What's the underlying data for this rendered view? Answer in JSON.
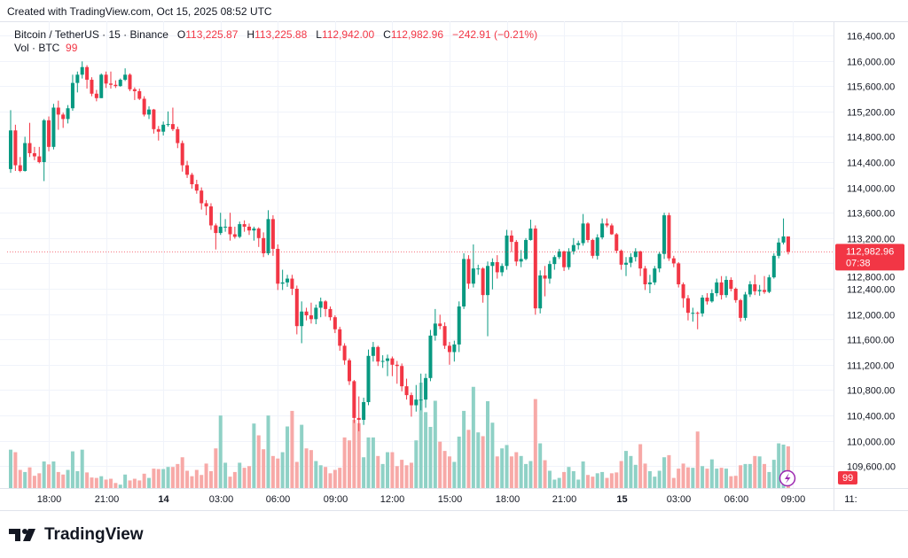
{
  "header": {
    "created": "Created with TradingView.com, Oct 15, 2025 08:52 UTC"
  },
  "legend": {
    "symbol": "Bitcoin / TetherUS · 15 · Binance",
    "o_label": "O",
    "open": "113,225.87",
    "h_label": "H",
    "high": "113,225.88",
    "l_label": "L",
    "low": "112,942.00",
    "c_label": "C",
    "close": "112,982.96",
    "change": "−242.91 (−0.21%)",
    "vol_label": "Vol · BTC",
    "vol_value": "99"
  },
  "price_label": {
    "price": "112,982.96",
    "countdown": "07:38"
  },
  "volume_label": "99",
  "logo": {
    "text": "TradingView"
  },
  "colors": {
    "up": "#089981",
    "down": "#f23645",
    "vol_up": "#8fd1c6",
    "vol_down": "#f7a9a7",
    "grid": "#f0f3fa"
  },
  "icons": {
    "lightning": "lightning-icon",
    "logo": "tradingview-logo-icon"
  },
  "chart_data": {
    "type": "candlestick",
    "symbol": "BTCUSDT",
    "interval": "15",
    "ylim": [
      109400,
      116700
    ],
    "y_ticks": [
      116400,
      116000,
      115600,
      115200,
      114800,
      114400,
      114000,
      113600,
      113200,
      112800,
      112400,
      112000,
      111600,
      111200,
      110800,
      110400,
      110000,
      109600
    ],
    "y_tick_labels": [
      "116,400.00",
      "116,000.00",
      "115,600.00",
      "115,200.00",
      "114,800.00",
      "114,400.00",
      "114,000.00",
      "113,600.00",
      "113,200.00",
      "112,800.00",
      "112,400.00",
      "112,000.00",
      "111,600.00",
      "111,200.00",
      "110,800.00",
      "110,400.00",
      "110,000.00",
      "109,600.00"
    ],
    "x_tick_labels": [
      "18:00",
      "21:00",
      "14",
      "03:00",
      "06:00",
      "09:00",
      "12:00",
      "15:00",
      "18:00",
      "21:00",
      "15",
      "03:00",
      "06:00",
      "09:00",
      "11:"
    ],
    "first_candle_time": "Oct 13 16:00",
    "last_price": 112982.96,
    "grid": true,
    "candle_fields": [
      "open",
      "high",
      "low",
      "close",
      "volume"
    ],
    "candles": [
      [
        114290,
        115220,
        114230,
        114900,
        91
      ],
      [
        114900,
        114990,
        114260,
        114350,
        85
      ],
      [
        114350,
        114480,
        114240,
        114260,
        43
      ],
      [
        114260,
        114800,
        114250,
        114700,
        38
      ],
      [
        114700,
        115020,
        114480,
        114540,
        49
      ],
      [
        114540,
        114640,
        114430,
        114490,
        29
      ],
      [
        114490,
        114640,
        114380,
        114400,
        35
      ],
      [
        114400,
        115080,
        114100,
        115060,
        63
      ],
      [
        115060,
        115120,
        114570,
        114640,
        56
      ],
      [
        114640,
        115320,
        114600,
        115260,
        63
      ],
      [
        115260,
        115370,
        114910,
        115150,
        38
      ],
      [
        115150,
        115180,
        114940,
        115080,
        32
      ],
      [
        115080,
        115300,
        115010,
        115250,
        43
      ],
      [
        115250,
        115780,
        115210,
        115650,
        87
      ],
      [
        115650,
        115830,
        115500,
        115780,
        40
      ],
      [
        115780,
        115990,
        115720,
        115900,
        91
      ],
      [
        115900,
        115930,
        115560,
        115700,
        37
      ],
      [
        115700,
        115740,
        115440,
        115480,
        25
      ],
      [
        115480,
        115540,
        115360,
        115410,
        24
      ],
      [
        115410,
        115800,
        115410,
        115780,
        28
      ],
      [
        115780,
        115830,
        115570,
        115640,
        20
      ],
      [
        115640,
        115830,
        115560,
        115620,
        22
      ],
      [
        115620,
        115690,
        115570,
        115600,
        12
      ],
      [
        115600,
        115720,
        115590,
        115700,
        8
      ],
      [
        115700,
        115880,
        115680,
        115780,
        32
      ],
      [
        115780,
        115800,
        115520,
        115550,
        18
      ],
      [
        115550,
        115580,
        115380,
        115520,
        22
      ],
      [
        115520,
        115560,
        115380,
        115400,
        18
      ],
      [
        115400,
        115440,
        115120,
        115150,
        34
      ],
      [
        115150,
        115280,
        115080,
        115230,
        24
      ],
      [
        115230,
        115240,
        114850,
        114920,
        46
      ],
      [
        114920,
        114970,
        114740,
        114880,
        45
      ],
      [
        114880,
        115040,
        114820,
        114990,
        45
      ],
      [
        114990,
        115200,
        114960,
        115000,
        50
      ],
      [
        115000,
        115260,
        114890,
        114920,
        50
      ],
      [
        114920,
        114960,
        114620,
        114700,
        57
      ],
      [
        114700,
        114740,
        114250,
        114350,
        73
      ],
      [
        114350,
        114420,
        114150,
        114200,
        41
      ],
      [
        114200,
        114230,
        113980,
        114050,
        28
      ],
      [
        114050,
        114120,
        113900,
        113950,
        43
      ],
      [
        113950,
        114000,
        113650,
        113750,
        31
      ],
      [
        113750,
        113800,
        113560,
        113700,
        58
      ],
      [
        113700,
        113750,
        113330,
        113400,
        40
      ],
      [
        113400,
        113430,
        113020,
        113280,
        94
      ],
      [
        113280,
        113600,
        113250,
        113380,
        172
      ],
      [
        113380,
        113500,
        113300,
        113380,
        60
      ],
      [
        113380,
        113600,
        113160,
        113260,
        27
      ],
      [
        113260,
        113380,
        113190,
        113220,
        38
      ],
      [
        113220,
        113460,
        113200,
        113420,
        60
      ],
      [
        113420,
        113480,
        113300,
        113380,
        48
      ],
      [
        113380,
        113430,
        113250,
        113320,
        52
      ],
      [
        113320,
        113380,
        113160,
        113350,
        153
      ],
      [
        113350,
        113370,
        113060,
        113200,
        125
      ],
      [
        113200,
        113290,
        112900,
        112960,
        92
      ],
      [
        112960,
        113640,
        112930,
        113500,
        172
      ],
      [
        113500,
        113560,
        112920,
        113030,
        76
      ],
      [
        113030,
        113100,
        112380,
        112480,
        70
      ],
      [
        112480,
        112700,
        112380,
        112500,
        85
      ],
      [
        112500,
        112620,
        112430,
        112560,
        146
      ],
      [
        112560,
        112620,
        112300,
        112400,
        183
      ],
      [
        112400,
        112450,
        111680,
        111810,
        62
      ],
      [
        111810,
        112200,
        111540,
        112040,
        150
      ],
      [
        112040,
        112100,
        111900,
        111980,
        94
      ],
      [
        111980,
        112180,
        111850,
        111920,
        90
      ],
      [
        111920,
        112150,
        111840,
        112100,
        64
      ],
      [
        112100,
        112260,
        111950,
        112200,
        54
      ],
      [
        112200,
        112220,
        111960,
        112080,
        50
      ],
      [
        112080,
        112120,
        111900,
        111950,
        35
      ],
      [
        111950,
        111980,
        111700,
        111760,
        43
      ],
      [
        111760,
        111800,
        111420,
        111500,
        48
      ],
      [
        111500,
        111540,
        111200,
        111270,
        120
      ],
      [
        111270,
        111300,
        110880,
        110940,
        113
      ],
      [
        110940,
        110960,
        110280,
        110360,
        162
      ],
      [
        110360,
        110700,
        110150,
        110330,
        154
      ],
      [
        110330,
        110680,
        110250,
        110610,
        73
      ],
      [
        110610,
        111440,
        110560,
        111340,
        120
      ],
      [
        111340,
        111560,
        111250,
        111480,
        120
      ],
      [
        111480,
        111500,
        111180,
        111250,
        76
      ],
      [
        111250,
        111350,
        111150,
        111260,
        57
      ],
      [
        111260,
        111360,
        111020,
        111300,
        85
      ],
      [
        111300,
        111330,
        111020,
        111200,
        85
      ],
      [
        111200,
        111260,
        110900,
        111180,
        52
      ],
      [
        111180,
        111220,
        110780,
        110860,
        67
      ],
      [
        110860,
        110980,
        110650,
        110720,
        54
      ],
      [
        110720,
        110760,
        110380,
        110560,
        60
      ],
      [
        110560,
        110880,
        110460,
        110650,
        113
      ],
      [
        110650,
        111060,
        110480,
        110650,
        250
      ],
      [
        110650,
        111060,
        110520,
        110990,
        180
      ],
      [
        110990,
        111750,
        110940,
        111660,
        145
      ],
      [
        111660,
        112080,
        111580,
        111850,
        207
      ],
      [
        111850,
        111990,
        111760,
        111810,
        110
      ],
      [
        111810,
        111870,
        111450,
        111500,
        88
      ],
      [
        111500,
        111560,
        111200,
        111400,
        75
      ],
      [
        111400,
        111580,
        111250,
        111520,
        62
      ],
      [
        111520,
        112200,
        111400,
        112120,
        122
      ],
      [
        112120,
        112960,
        112080,
        112870,
        183
      ],
      [
        112870,
        112930,
        112400,
        112480,
        138
      ],
      [
        112480,
        113100,
        112420,
        112720,
        240
      ],
      [
        112720,
        112780,
        112620,
        112720,
        132
      ],
      [
        112720,
        112740,
        112180,
        112300,
        123
      ],
      [
        112300,
        112830,
        111650,
        112760,
        206
      ],
      [
        112760,
        112880,
        112390,
        112820,
        155
      ],
      [
        112820,
        112930,
        112560,
        112660,
        75
      ],
      [
        112660,
        112800,
        112600,
        112760,
        94
      ],
      [
        112760,
        113330,
        112700,
        113240,
        102
      ],
      [
        113240,
        113320,
        112980,
        113140,
        75
      ],
      [
        113140,
        113170,
        112760,
        112830,
        85
      ],
      [
        112830,
        113010,
        112740,
        112870,
        76
      ],
      [
        112870,
        113200,
        112850,
        113170,
        57
      ],
      [
        113170,
        113490,
        113160,
        113350,
        64
      ],
      [
        113350,
        113400,
        111990,
        112090,
        211
      ],
      [
        112090,
        112690,
        112010,
        112610,
        106
      ],
      [
        112610,
        112760,
        112280,
        112560,
        66
      ],
      [
        112560,
        112840,
        112480,
        112790,
        41
      ],
      [
        112790,
        112930,
        112700,
        112900,
        20
      ],
      [
        112900,
        113030,
        112870,
        112990,
        24
      ],
      [
        112990,
        113000,
        112680,
        112740,
        38
      ],
      [
        112740,
        113040,
        112700,
        112990,
        50
      ],
      [
        112990,
        113200,
        112940,
        113090,
        40
      ],
      [
        113090,
        113160,
        113020,
        113120,
        20
      ],
      [
        113120,
        113580,
        113080,
        113430,
        63
      ],
      [
        113430,
        113450,
        113130,
        113170,
        31
      ],
      [
        113170,
        113190,
        112880,
        112920,
        27
      ],
      [
        112920,
        113260,
        112860,
        113210,
        35
      ],
      [
        113210,
        113510,
        113180,
        113430,
        38
      ],
      [
        113430,
        113510,
        113370,
        113400,
        24
      ],
      [
        113400,
        113430,
        113250,
        113260,
        35
      ],
      [
        113260,
        113280,
        112960,
        113000,
        37
      ],
      [
        113000,
        113020,
        112700,
        112780,
        64
      ],
      [
        112780,
        112900,
        112600,
        112810,
        88
      ],
      [
        112810,
        112960,
        112740,
        112900,
        76
      ],
      [
        112900,
        113040,
        112830,
        112990,
        55
      ],
      [
        112990,
        113000,
        112600,
        112720,
        104
      ],
      [
        112720,
        112760,
        112380,
        112470,
        58
      ],
      [
        112470,
        112620,
        112330,
        112500,
        40
      ],
      [
        112500,
        112760,
        112460,
        112720,
        27
      ],
      [
        112720,
        112980,
        112660,
        112950,
        41
      ],
      [
        112950,
        113600,
        112870,
        113560,
        73
      ],
      [
        113560,
        113600,
        112840,
        112880,
        78
      ],
      [
        112880,
        112920,
        112740,
        112800,
        24
      ],
      [
        112800,
        112820,
        112420,
        112470,
        46
      ],
      [
        112470,
        112500,
        112100,
        112250,
        58
      ],
      [
        112250,
        112300,
        111900,
        112020,
        49
      ],
      [
        112020,
        112100,
        111880,
        112020,
        48
      ],
      [
        112020,
        112040,
        111760,
        112010,
        134
      ],
      [
        112010,
        112300,
        111960,
        112260,
        52
      ],
      [
        112260,
        112330,
        112150,
        112200,
        46
      ],
      [
        112200,
        112390,
        112180,
        112330,
        68
      ],
      [
        112330,
        112560,
        112280,
        112500,
        46
      ],
      [
        112500,
        112600,
        112230,
        112300,
        48
      ],
      [
        112300,
        112600,
        112260,
        112540,
        46
      ],
      [
        112540,
        112580,
        112360,
        112400,
        28
      ],
      [
        112400,
        112420,
        112180,
        112220,
        29
      ],
      [
        112220,
        112240,
        111880,
        111940,
        54
      ],
      [
        111940,
        112350,
        111900,
        112310,
        57
      ],
      [
        112310,
        112520,
        112270,
        112470,
        57
      ],
      [
        112470,
        112620,
        112300,
        112360,
        76
      ],
      [
        112360,
        112460,
        112290,
        112380,
        75
      ],
      [
        112380,
        112600,
        112320,
        112350,
        57
      ],
      [
        112350,
        112620,
        112330,
        112580,
        38
      ],
      [
        112580,
        112960,
        112560,
        112920,
        67
      ],
      [
        112920,
        113200,
        112880,
        113130,
        106
      ],
      [
        113130,
        113510,
        113100,
        113226,
        103
      ],
      [
        113225.87,
        113225.88,
        112942,
        112982.96,
        99
      ]
    ]
  }
}
